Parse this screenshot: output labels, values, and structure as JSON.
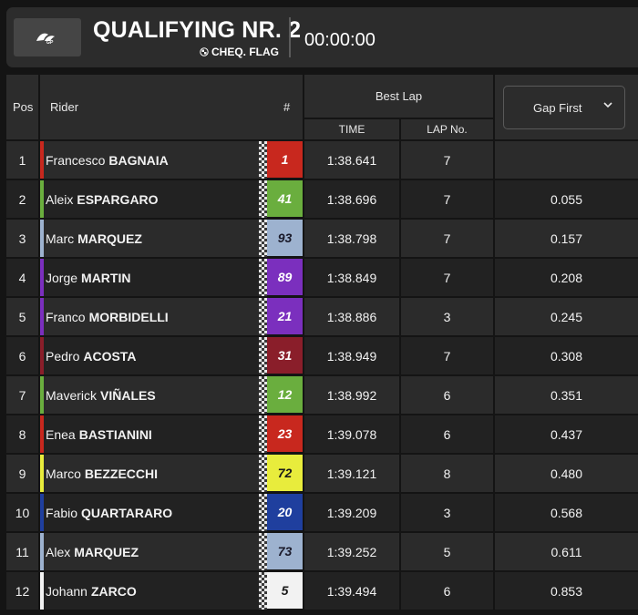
{
  "header": {
    "title": "QUALIFYING NR. 2",
    "status": "CHEQ. FLAG",
    "clock": "00:00:00"
  },
  "columns": {
    "pos": "Pos",
    "rider": "Rider",
    "number": "#",
    "best_lap": "Best Lap",
    "time": "TIME",
    "lap_no": "LAP No.",
    "gap_select": "Gap First"
  },
  "rows": [
    {
      "pos": "1",
      "first": "Francesco",
      "last": "BAGNAIA",
      "number": "1",
      "team_color": "#c8281e",
      "num_bg": "#c8281e",
      "num_fg": "#ffffff",
      "time": "1:38.641",
      "lap": "7",
      "gap": ""
    },
    {
      "pos": "2",
      "first": "Aleix",
      "last": "ESPARGARO",
      "number": "41",
      "team_color": "#6aae3e",
      "num_bg": "#6aae3e",
      "num_fg": "#ffffff",
      "time": "1:38.696",
      "lap": "7",
      "gap": "0.055"
    },
    {
      "pos": "3",
      "first": "Marc",
      "last": "MARQUEZ",
      "number": "93",
      "team_color": "#9db2cf",
      "num_bg": "#9db2cf",
      "num_fg": "#1a1a2a",
      "time": "1:38.798",
      "lap": "7",
      "gap": "0.157"
    },
    {
      "pos": "4",
      "first": "Jorge",
      "last": "MARTIN",
      "number": "89",
      "team_color": "#7b2fbe",
      "num_bg": "#7b2fbe",
      "num_fg": "#ffffff",
      "time": "1:38.849",
      "lap": "7",
      "gap": "0.208"
    },
    {
      "pos": "5",
      "first": "Franco",
      "last": "MORBIDELLI",
      "number": "21",
      "team_color": "#7b2fbe",
      "num_bg": "#7b2fbe",
      "num_fg": "#ffffff",
      "time": "1:38.886",
      "lap": "3",
      "gap": "0.245"
    },
    {
      "pos": "6",
      "first": "Pedro",
      "last": "ACOSTA",
      "number": "31",
      "team_color": "#8a1e2a",
      "num_bg": "#8a1e2a",
      "num_fg": "#ffffff",
      "time": "1:38.949",
      "lap": "7",
      "gap": "0.308"
    },
    {
      "pos": "7",
      "first": "Maverick",
      "last": "VIÑALES",
      "number": "12",
      "team_color": "#6aae3e",
      "num_bg": "#6aae3e",
      "num_fg": "#ffffff",
      "time": "1:38.992",
      "lap": "6",
      "gap": "0.351"
    },
    {
      "pos": "8",
      "first": "Enea",
      "last": "BASTIANINI",
      "number": "23",
      "team_color": "#c8281e",
      "num_bg": "#c8281e",
      "num_fg": "#ffffff",
      "time": "1:39.078",
      "lap": "6",
      "gap": "0.437"
    },
    {
      "pos": "9",
      "first": "Marco",
      "last": "BEZZECCHI",
      "number": "72",
      "team_color": "#e8ec3c",
      "num_bg": "#e8ec3c",
      "num_fg": "#1a1a1a",
      "time": "1:39.121",
      "lap": "8",
      "gap": "0.480"
    },
    {
      "pos": "10",
      "first": "Fabio",
      "last": "QUARTARARO",
      "number": "20",
      "team_color": "#1f3f9e",
      "num_bg": "#1f3f9e",
      "num_fg": "#ffffff",
      "time": "1:39.209",
      "lap": "3",
      "gap": "0.568"
    },
    {
      "pos": "11",
      "first": "Alex",
      "last": "MARQUEZ",
      "number": "73",
      "team_color": "#9db2cf",
      "num_bg": "#9db2cf",
      "num_fg": "#1a1a2a",
      "time": "1:39.252",
      "lap": "5",
      "gap": "0.611"
    },
    {
      "pos": "12",
      "first": "Johann",
      "last": "ZARCO",
      "number": "5",
      "team_color": "#f2f2f2",
      "num_bg": "#f2f2f2",
      "num_fg": "#1a1a1a",
      "time": "1:39.494",
      "lap": "6",
      "gap": "0.853"
    }
  ]
}
